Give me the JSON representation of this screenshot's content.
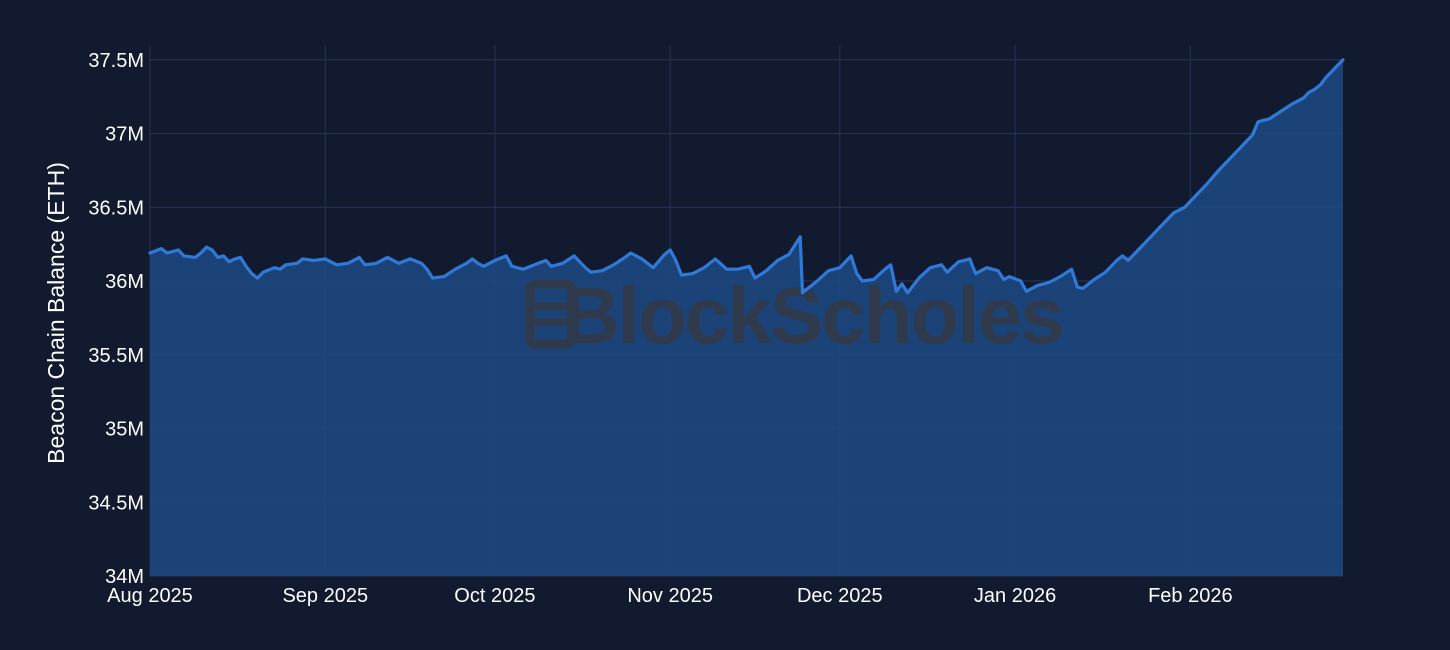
{
  "watermark": {
    "text": "BlockScholes"
  },
  "colors": {
    "background": "#111a2e",
    "plot_background": "#111a2e",
    "grid": "#26355a",
    "line": "#2f79d8",
    "area_fill": "#1d467f",
    "text": "#ffffff",
    "watermark": "#2f3a4c"
  },
  "chart_data": {
    "type": "area",
    "title": "",
    "xlabel": "",
    "ylabel": "Beacon Chain Balance (ETH)",
    "x_range": [
      "2025-08-01",
      "2026-02-28"
    ],
    "ylim": [
      34000000,
      37600000
    ],
    "grid": true,
    "legend": "none",
    "x_ticks": [
      {
        "date": "2025-08-01",
        "label": "Aug 2025"
      },
      {
        "date": "2025-09-01",
        "label": "Sep 2025"
      },
      {
        "date": "2025-10-01",
        "label": "Oct 2025"
      },
      {
        "date": "2025-11-01",
        "label": "Nov 2025"
      },
      {
        "date": "2025-12-01",
        "label": "Dec 2025"
      },
      {
        "date": "2026-01-01",
        "label": "Jan 2026"
      },
      {
        "date": "2026-02-01",
        "label": "Feb 2026"
      }
    ],
    "y_ticks": [
      {
        "value": 34000000,
        "label": "34M"
      },
      {
        "value": 34500000,
        "label": "34.5M"
      },
      {
        "value": 35000000,
        "label": "35M"
      },
      {
        "value": 35500000,
        "label": "35.5M"
      },
      {
        "value": 36000000,
        "label": "36M"
      },
      {
        "value": 36500000,
        "label": "36.5M"
      },
      {
        "value": 37000000,
        "label": "37M"
      },
      {
        "value": 37500000,
        "label": "37.5M"
      }
    ],
    "series": [
      {
        "points": [
          [
            "2025-08-01",
            36190000
          ],
          [
            "2025-08-03",
            36220000
          ],
          [
            "2025-08-04",
            36190000
          ],
          [
            "2025-08-06",
            36210000
          ],
          [
            "2025-08-07",
            36170000
          ],
          [
            "2025-08-09",
            36160000
          ],
          [
            "2025-08-10",
            36190000
          ],
          [
            "2025-08-11",
            36230000
          ],
          [
            "2025-08-12",
            36210000
          ],
          [
            "2025-08-13",
            36160000
          ],
          [
            "2025-08-14",
            36170000
          ],
          [
            "2025-08-15",
            36130000
          ],
          [
            "2025-08-16",
            36150000
          ],
          [
            "2025-08-17",
            36160000
          ],
          [
            "2025-08-18",
            36100000
          ],
          [
            "2025-08-19",
            36050000
          ],
          [
            "2025-08-20",
            36020000
          ],
          [
            "2025-08-21",
            36060000
          ],
          [
            "2025-08-23",
            36090000
          ],
          [
            "2025-08-24",
            36080000
          ],
          [
            "2025-08-25",
            36110000
          ],
          [
            "2025-08-27",
            36120000
          ],
          [
            "2025-08-28",
            36150000
          ],
          [
            "2025-08-30",
            36140000
          ],
          [
            "2025-09-01",
            36150000
          ],
          [
            "2025-09-03",
            36110000
          ],
          [
            "2025-09-05",
            36120000
          ],
          [
            "2025-09-07",
            36160000
          ],
          [
            "2025-09-08",
            36110000
          ],
          [
            "2025-09-10",
            36120000
          ],
          [
            "2025-09-12",
            36160000
          ],
          [
            "2025-09-14",
            36120000
          ],
          [
            "2025-09-16",
            36150000
          ],
          [
            "2025-09-18",
            36120000
          ],
          [
            "2025-09-19",
            36080000
          ],
          [
            "2025-09-20",
            36020000
          ],
          [
            "2025-09-22",
            36030000
          ],
          [
            "2025-09-24",
            36080000
          ],
          [
            "2025-09-26",
            36120000
          ],
          [
            "2025-09-27",
            36150000
          ],
          [
            "2025-09-28",
            36120000
          ],
          [
            "2025-09-29",
            36100000
          ],
          [
            "2025-10-01",
            36140000
          ],
          [
            "2025-10-03",
            36170000
          ],
          [
            "2025-10-04",
            36100000
          ],
          [
            "2025-10-06",
            36080000
          ],
          [
            "2025-10-08",
            36110000
          ],
          [
            "2025-10-10",
            36140000
          ],
          [
            "2025-10-11",
            36100000
          ],
          [
            "2025-10-13",
            36120000
          ],
          [
            "2025-10-15",
            36170000
          ],
          [
            "2025-10-17",
            36090000
          ],
          [
            "2025-10-18",
            36060000
          ],
          [
            "2025-10-20",
            36070000
          ],
          [
            "2025-10-22",
            36110000
          ],
          [
            "2025-10-24",
            36160000
          ],
          [
            "2025-10-25",
            36190000
          ],
          [
            "2025-10-26",
            36170000
          ],
          [
            "2025-10-27",
            36150000
          ],
          [
            "2025-10-29",
            36090000
          ],
          [
            "2025-10-31",
            36180000
          ],
          [
            "2025-11-01",
            36210000
          ],
          [
            "2025-11-02",
            36140000
          ],
          [
            "2025-11-03",
            36040000
          ],
          [
            "2025-11-05",
            36050000
          ],
          [
            "2025-11-07",
            36090000
          ],
          [
            "2025-11-09",
            36150000
          ],
          [
            "2025-11-11",
            36080000
          ],
          [
            "2025-11-13",
            36080000
          ],
          [
            "2025-11-15",
            36100000
          ],
          [
            "2025-11-16",
            36020000
          ],
          [
            "2025-11-18",
            36070000
          ],
          [
            "2025-11-20",
            36140000
          ],
          [
            "2025-11-22",
            36180000
          ],
          [
            "2025-11-24",
            36300000
          ],
          [
            "2025-11-24.4",
            35920000
          ],
          [
            "2025-11-25",
            35940000
          ],
          [
            "2025-11-27",
            36000000
          ],
          [
            "2025-11-29",
            36070000
          ],
          [
            "2025-12-01",
            36090000
          ],
          [
            "2025-12-03",
            36170000
          ],
          [
            "2025-12-04",
            36050000
          ],
          [
            "2025-12-05",
            36000000
          ],
          [
            "2025-12-07",
            36010000
          ],
          [
            "2025-12-09",
            36080000
          ],
          [
            "2025-12-10",
            36110000
          ],
          [
            "2025-12-11",
            35930000
          ],
          [
            "2025-12-12",
            35980000
          ],
          [
            "2025-12-13",
            35920000
          ],
          [
            "2025-12-15",
            36020000
          ],
          [
            "2025-12-17",
            36090000
          ],
          [
            "2025-12-19",
            36110000
          ],
          [
            "2025-12-20",
            36060000
          ],
          [
            "2025-12-22",
            36130000
          ],
          [
            "2025-12-24",
            36150000
          ],
          [
            "2025-12-25",
            36050000
          ],
          [
            "2025-12-27",
            36090000
          ],
          [
            "2025-12-29",
            36070000
          ],
          [
            "2025-12-30",
            36010000
          ],
          [
            "2025-12-31",
            36030000
          ],
          [
            "2026-01-02",
            36000000
          ],
          [
            "2026-01-03",
            35930000
          ],
          [
            "2026-01-05",
            35970000
          ],
          [
            "2026-01-07",
            35990000
          ],
          [
            "2026-01-09",
            36030000
          ],
          [
            "2026-01-11",
            36080000
          ],
          [
            "2026-01-12",
            35960000
          ],
          [
            "2026-01-13",
            35950000
          ],
          [
            "2026-01-15",
            36010000
          ],
          [
            "2026-01-17",
            36060000
          ],
          [
            "2026-01-19",
            36140000
          ],
          [
            "2026-01-20",
            36170000
          ],
          [
            "2026-01-21",
            36140000
          ],
          [
            "2026-01-23",
            36220000
          ],
          [
            "2026-01-25",
            36300000
          ],
          [
            "2026-01-27",
            36380000
          ],
          [
            "2026-01-29",
            36460000
          ],
          [
            "2026-01-31",
            36500000
          ],
          [
            "2026-02-02",
            36580000
          ],
          [
            "2026-02-04",
            36660000
          ],
          [
            "2026-02-06",
            36750000
          ],
          [
            "2026-02-08",
            36830000
          ],
          [
            "2026-02-10",
            36910000
          ],
          [
            "2026-02-12",
            36990000
          ],
          [
            "2026-02-13",
            37080000
          ],
          [
            "2026-02-15",
            37100000
          ],
          [
            "2026-02-17",
            37150000
          ],
          [
            "2026-02-19",
            37200000
          ],
          [
            "2026-02-21",
            37240000
          ],
          [
            "2026-02-22",
            37280000
          ],
          [
            "2026-02-23",
            37300000
          ],
          [
            "2026-02-24",
            37330000
          ],
          [
            "2026-02-25",
            37380000
          ],
          [
            "2026-02-26",
            37420000
          ],
          [
            "2026-02-27",
            37460000
          ],
          [
            "2026-02-28",
            37500000
          ]
        ]
      }
    ]
  }
}
